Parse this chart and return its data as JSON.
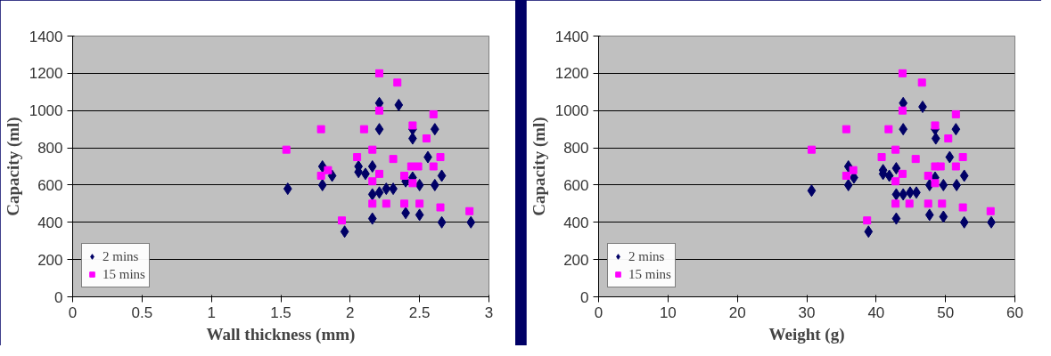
{
  "chart_data": [
    {
      "type": "scatter",
      "xlabel": "Wall thickness (mm)",
      "ylabel": "Capacity (ml)",
      "xlim": [
        0,
        3
      ],
      "xticks": [
        0,
        0.5,
        1,
        1.5,
        2,
        2.5,
        3
      ],
      "ylim": [
        0,
        1400
      ],
      "yticks": [
        0,
        200,
        400,
        600,
        800,
        1000,
        1200,
        1400
      ],
      "grid": "y",
      "legend": "bottom left",
      "series": [
        {
          "name": "2 mins",
          "color": "#000066",
          "marker": "diamond",
          "x": [
            2.21,
            2.35,
            2.21,
            2.45,
            2.61,
            2.45,
            2.56,
            1.8,
            2.06,
            2.16,
            2.06,
            1.87,
            2.11,
            2.66,
            1.8,
            1.55,
            2.45,
            2.4,
            2.5,
            2.61,
            2.16,
            2.21,
            2.26,
            2.31,
            2.4,
            2.5,
            2.16,
            2.66,
            2.87,
            1.96
          ],
          "values": [
            1040,
            1030,
            900,
            900,
            900,
            850,
            750,
            700,
            700,
            700,
            670,
            650,
            660,
            650,
            600,
            580,
            640,
            620,
            600,
            600,
            550,
            560,
            580,
            580,
            450,
            440,
            420,
            400,
            400,
            350
          ]
        },
        {
          "name": "15 mins",
          "color": "#ff00ff",
          "marker": "square",
          "x": [
            2.21,
            2.34,
            2.21,
            2.6,
            1.79,
            2.1,
            2.45,
            2.55,
            1.54,
            2.16,
            2.05,
            2.31,
            2.65,
            2.44,
            2.49,
            2.6,
            1.84,
            1.79,
            2.21,
            2.39,
            2.16,
            2.45,
            2.16,
            2.26,
            2.39,
            2.5,
            2.65,
            2.86,
            1.94
          ],
          "values": [
            1200,
            1150,
            1000,
            980,
            900,
            900,
            920,
            850,
            790,
            790,
            750,
            740,
            750,
            700,
            700,
            700,
            680,
            650,
            660,
            650,
            620,
            610,
            500,
            500,
            500,
            500,
            480,
            460,
            410
          ]
        }
      ]
    },
    {
      "type": "scatter",
      "xlabel": "Weight (g)",
      "ylabel": "Capacity (ml)",
      "xlim": [
        0,
        60
      ],
      "xticks": [
        0,
        10,
        20,
        30,
        40,
        50,
        60
      ],
      "ylim": [
        0,
        1400
      ],
      "yticks": [
        0,
        200,
        400,
        600,
        800,
        1000,
        1200,
        1400
      ],
      "grid": "y",
      "legend": "bottom left",
      "series": [
        {
          "name": "2 mins",
          "color": "#000066",
          "marker": "diamond",
          "x": [
            43.9,
            46.7,
            43.9,
            48.5,
            51.5,
            48.6,
            50.6,
            36.0,
            41.0,
            42.9,
            36.8,
            41.0,
            41.9,
            52.7,
            36.0,
            30.7,
            47.7,
            49.7,
            51.6,
            48.5,
            42.9,
            43.9,
            44.9,
            45.8,
            47.7,
            49.7,
            42.9,
            52.7,
            56.6,
            38.9
          ],
          "values": [
            1040,
            1020,
            900,
            900,
            900,
            850,
            750,
            700,
            680,
            690,
            640,
            660,
            650,
            650,
            600,
            570,
            600,
            600,
            600,
            640,
            550,
            550,
            560,
            560,
            440,
            430,
            420,
            400,
            400,
            350
          ]
        },
        {
          "name": "15 mins",
          "color": "#ff00ff",
          "marker": "square",
          "x": [
            43.8,
            46.6,
            43.8,
            51.5,
            35.7,
            41.8,
            48.5,
            50.4,
            30.7,
            42.8,
            40.8,
            45.7,
            52.5,
            48.5,
            49.3,
            51.5,
            36.7,
            35.7,
            43.8,
            47.5,
            42.8,
            48.5,
            42.8,
            44.8,
            47.5,
            49.5,
            52.5,
            56.5,
            38.7
          ],
          "values": [
            1200,
            1150,
            1000,
            980,
            900,
            900,
            920,
            850,
            790,
            790,
            750,
            740,
            750,
            700,
            700,
            700,
            680,
            650,
            660,
            650,
            620,
            610,
            500,
            500,
            500,
            500,
            480,
            460,
            410
          ]
        }
      ]
    }
  ]
}
